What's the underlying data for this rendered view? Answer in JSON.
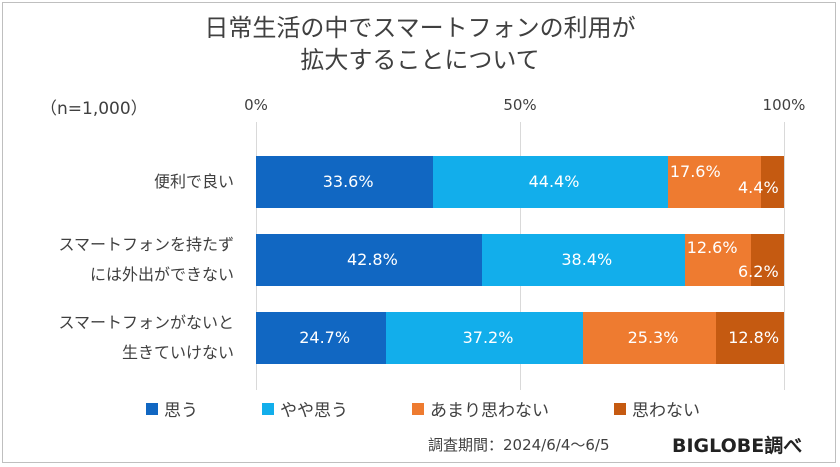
{
  "chart_data": {
    "type": "bar",
    "orientation": "horizontal-stacked-100",
    "title_lines": [
      "日常生活の中でスマートフォンの利用が",
      "拡大することについて"
    ],
    "sample_note": "（n=1,000）",
    "x_ticks": [
      "0%",
      "50%",
      "100%"
    ],
    "xlim": [
      0,
      100
    ],
    "categories": [
      [
        "便利で良い"
      ],
      [
        "スマートフォンを持たず",
        "には外出ができない"
      ],
      [
        "スマートフォンがないと",
        "生きていけない"
      ]
    ],
    "series": [
      {
        "name": "思う",
        "color": "#1167c2",
        "values": [
          33.6,
          42.8,
          24.7
        ],
        "labels": [
          "33.6%",
          "42.8%",
          "24.7%"
        ]
      },
      {
        "name": "やや思う",
        "color": "#12aeeb",
        "values": [
          44.4,
          38.4,
          37.2
        ],
        "labels": [
          "44.4%",
          "38.4%",
          "37.2%"
        ]
      },
      {
        "name": "あまり思わない",
        "color": "#ee7b30",
        "values": [
          17.6,
          12.6,
          25.3
        ],
        "labels": [
          "17.6%",
          "12.6%",
          "25.3%"
        ]
      },
      {
        "name": "思わない",
        "color": "#c55a11",
        "values": [
          4.4,
          6.2,
          12.8
        ],
        "labels": [
          "4.4%",
          "6.2%",
          "12.8%"
        ]
      }
    ],
    "legend_position": "bottom"
  },
  "footer": {
    "source": "調査期間：2024/6/4〜6/5",
    "brand": "BIGLOBE調べ"
  }
}
